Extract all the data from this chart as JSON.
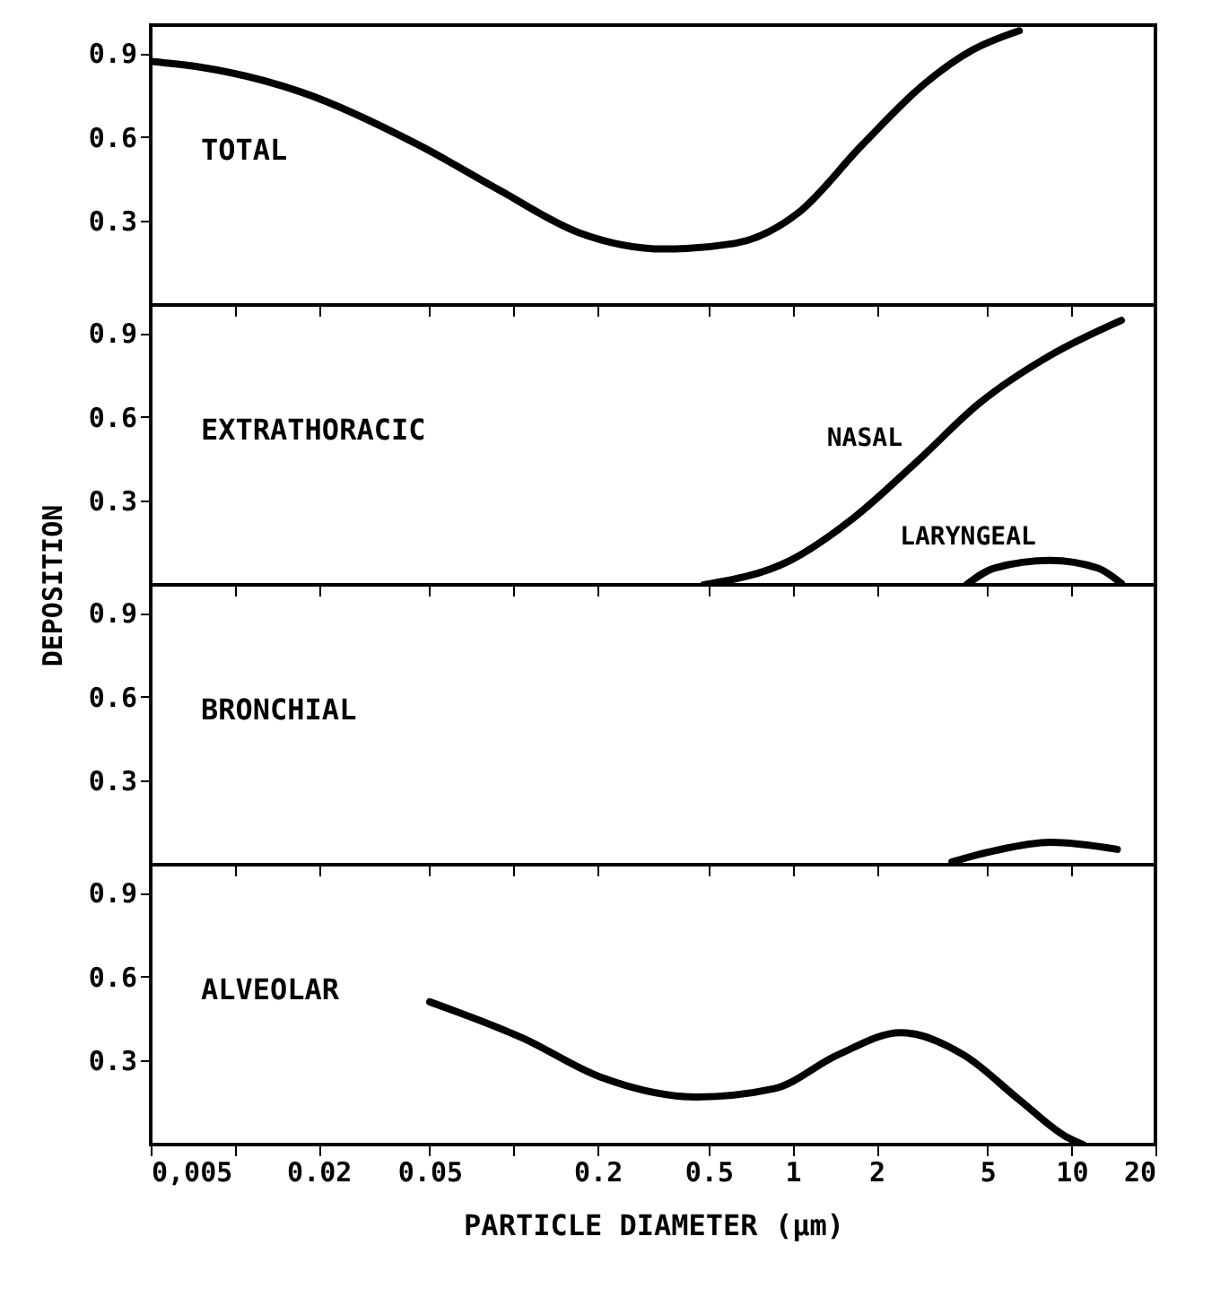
{
  "chart_data": [
    {
      "type": "line",
      "title": "TOTAL",
      "log": "x",
      "xlim": [
        0.005,
        20
      ],
      "xticks": [
        {
          "value": 0.005,
          "label": null
        },
        {
          "value": 0.01,
          "label": null
        },
        {
          "value": 0.02,
          "label": null
        },
        {
          "value": 0.05,
          "label": null
        },
        {
          "value": 0.1,
          "label": null
        },
        {
          "value": 0.2,
          "label": null
        },
        {
          "value": 0.5,
          "label": null
        },
        {
          "value": 1,
          "label": null
        },
        {
          "value": 2,
          "label": null
        },
        {
          "value": 5,
          "label": null
        },
        {
          "value": 10,
          "label": null
        },
        {
          "value": 20,
          "label": null
        }
      ],
      "ylim": [
        0,
        1
      ],
      "yticks": [
        0.3,
        0.6,
        0.9
      ],
      "tick_labels": "y",
      "series": [
        {
          "color": "#000000",
          "x": [
            0.005,
            0.0075,
            0.0174,
            0.046,
            0.089,
            0.17,
            0.35,
            0.62,
            1.05,
            1.77,
            2.97,
            4.4,
            6.5
          ],
          "values": [
            0.87,
            0.85,
            0.76,
            0.57,
            0.41,
            0.26,
            0.2,
            0.22,
            0.33,
            0.57,
            0.79,
            0.91,
            0.98
          ]
        }
      ]
    },
    {
      "type": "line",
      "title": "EXTRATHORACIC",
      "ylabel": "DEPOSITION",
      "log": "x",
      "xlim": [
        0.005,
        20
      ],
      "xticks": [
        {
          "value": 0.005,
          "label": null
        },
        {
          "value": 0.01,
          "label": null
        },
        {
          "value": 0.02,
          "label": null
        },
        {
          "value": 0.05,
          "label": null
        },
        {
          "value": 0.1,
          "label": null
        },
        {
          "value": 0.2,
          "label": null
        },
        {
          "value": 0.5,
          "label": null
        },
        {
          "value": 1,
          "label": null
        },
        {
          "value": 2,
          "label": null
        },
        {
          "value": 5,
          "label": null
        },
        {
          "value": 10,
          "label": null
        },
        {
          "value": 20,
          "label": null
        }
      ],
      "ylim": [
        0,
        1
      ],
      "yticks": [
        0.3,
        0.6,
        0.9
      ],
      "tick_labels": "y",
      "series": [
        {
          "name": "NASAL",
          "color": "#000000",
          "x": [
            0.48,
            0.98,
            1.66,
            2.79,
            4.69,
            8.4,
            15.1
          ],
          "values": [
            0,
            0.087,
            0.24,
            0.44,
            0.65,
            0.82,
            0.945
          ]
        },
        {
          "name": "LARYNGEAL",
          "color": "#000000",
          "x": [
            4.2,
            5.3,
            8.4,
            12.4,
            15.1
          ],
          "values": [
            0,
            0.06,
            0.087,
            0.06,
            0.005
          ]
        }
      ]
    },
    {
      "type": "line",
      "title": "BRONCHIAL",
      "log": "x",
      "xlim": [
        0.005,
        20
      ],
      "xticks": [
        {
          "value": 0.005,
          "label": null
        },
        {
          "value": 0.01,
          "label": null
        },
        {
          "value": 0.02,
          "label": null
        },
        {
          "value": 0.05,
          "label": null
        },
        {
          "value": 0.1,
          "label": null
        },
        {
          "value": 0.2,
          "label": null
        },
        {
          "value": 0.5,
          "label": null
        },
        {
          "value": 1,
          "label": null
        },
        {
          "value": 2,
          "label": null
        },
        {
          "value": 5,
          "label": null
        },
        {
          "value": 10,
          "label": null
        },
        {
          "value": 20,
          "label": null
        }
      ],
      "ylim": [
        0,
        1
      ],
      "yticks": [
        0.3,
        0.6,
        0.9
      ],
      "tick_labels": "y",
      "series": [
        {
          "color": "#000000",
          "x": [
            3.73,
            5.3,
            8.4,
            14.6
          ],
          "values": [
            0.01,
            0.05,
            0.08,
            0.055
          ]
        }
      ]
    },
    {
      "type": "line",
      "title": "ALVEOLAR",
      "xlabel": "PARTICLE  DIAMETER    (µm)",
      "log": "x",
      "xlim": [
        0.005,
        20
      ],
      "xticks": [
        {
          "value": 0.005,
          "label": "0,005"
        },
        {
          "value": 0.01,
          "label": null
        },
        0.02,
        0.05,
        {
          "value": 0.1,
          "label": null
        },
        0.2,
        0.5,
        1,
        2,
        5,
        10,
        20
      ],
      "ylim": [
        0,
        1
      ],
      "yticks": [
        0.3,
        0.6,
        0.9
      ],
      "series": [
        {
          "color": "#000000",
          "x": [
            0.05,
            0.108,
            0.206,
            0.45,
            0.86,
            1.45,
            2.44,
            4.11,
            6.5,
            9.5,
            11
          ],
          "values": [
            0.51,
            0.38,
            0.24,
            0.17,
            0.2,
            0.32,
            0.4,
            0.32,
            0.16,
            0.03,
            0
          ]
        }
      ]
    }
  ]
}
